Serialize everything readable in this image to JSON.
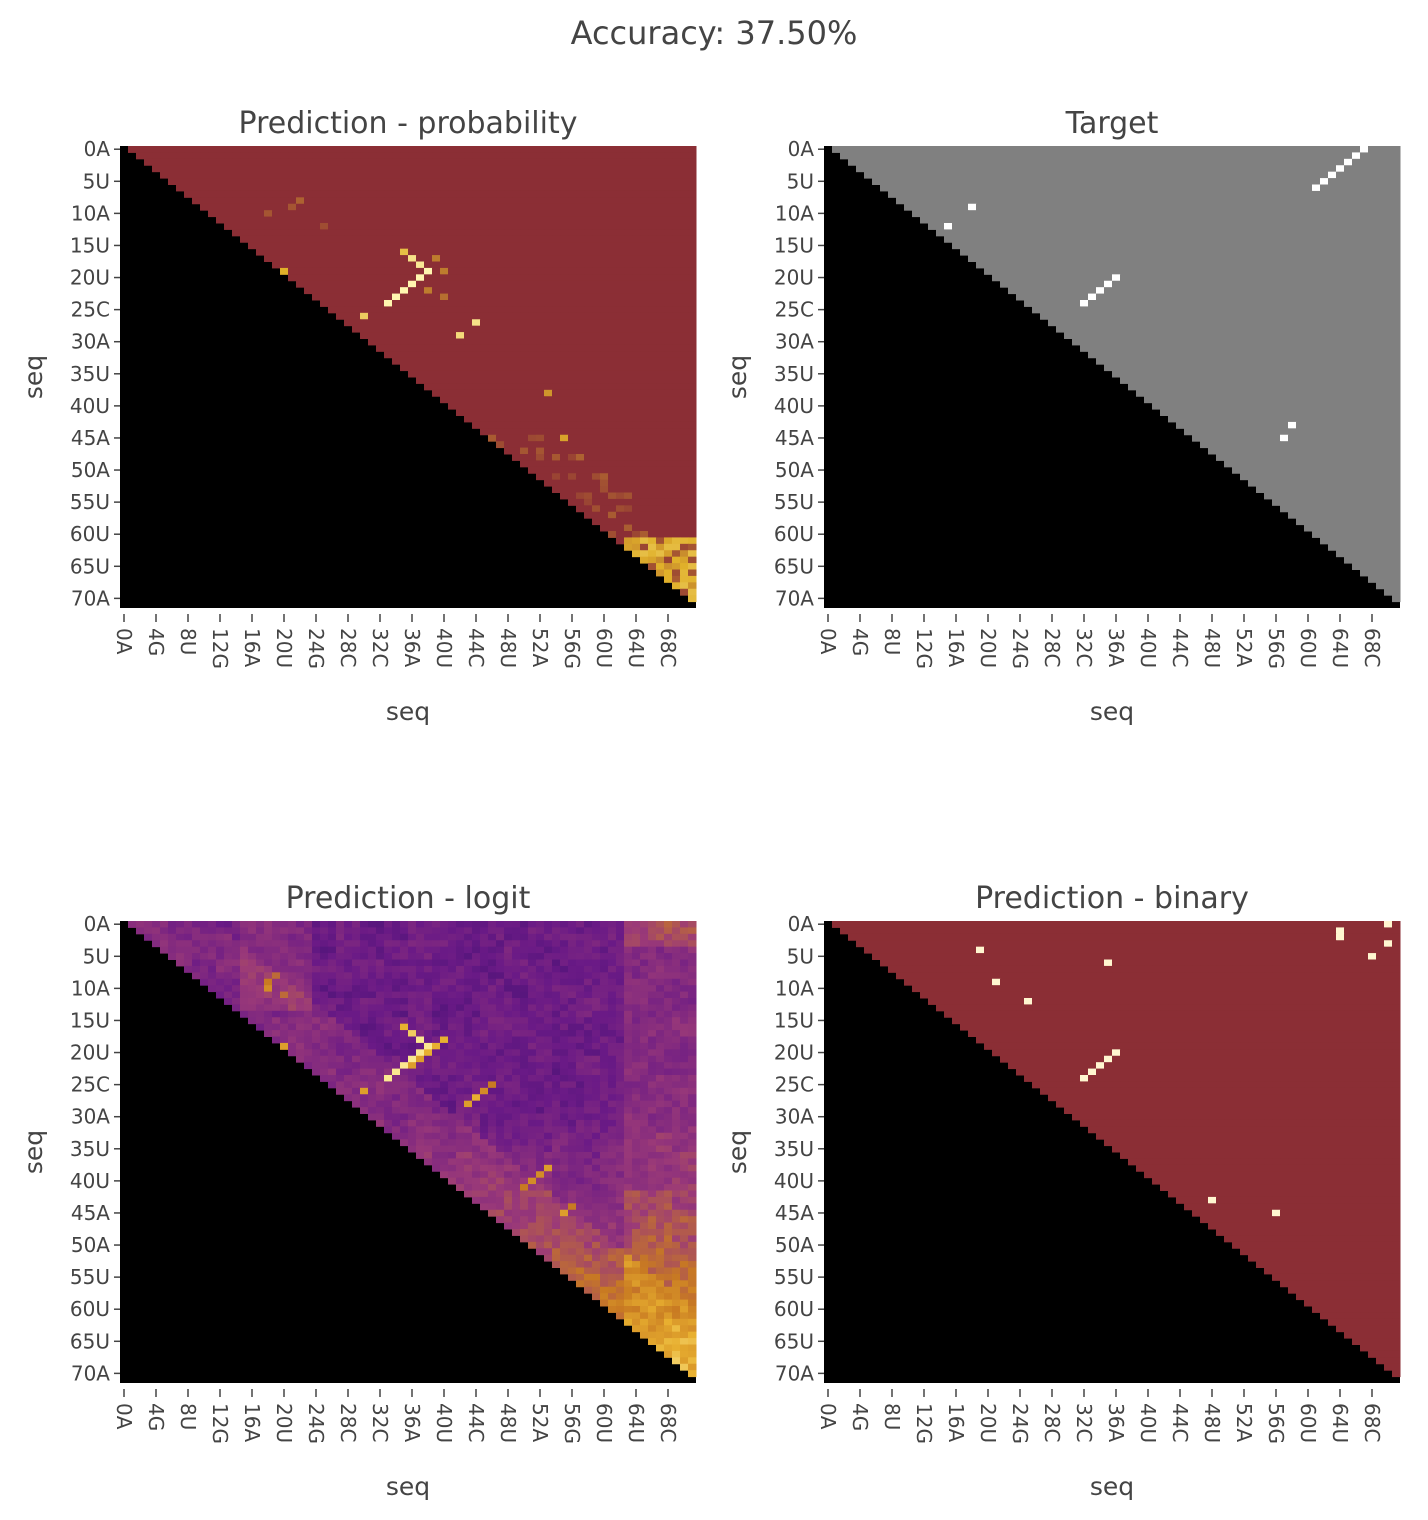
{
  "figure": {
    "title": "Accuracy: 37.50%"
  },
  "chart_data": [
    {
      "type": "heatmap",
      "panel": "probability",
      "title": "Prediction - probability",
      "xlabel": "seq",
      "ylabel": "seq",
      "size": 72,
      "x_tick_labels": [
        "0A",
        "4G",
        "8U",
        "12G",
        "16A",
        "20U",
        "24G",
        "28C",
        "32C",
        "36A",
        "40U",
        "44C",
        "48U",
        "52A",
        "56G",
        "60U",
        "64U",
        "68C"
      ],
      "y_tick_labels": [
        "0A",
        "5U",
        "10A",
        "15U",
        "20U",
        "25C",
        "30A",
        "35U",
        "40U",
        "45A",
        "50A",
        "55U",
        "60U",
        "65U",
        "70A"
      ],
      "masked_region": "lower-triangle (black)",
      "colors": {
        "background": "#8b2e35",
        "mask": "#000000",
        "high": "#fff6b0",
        "mid": "#e0b02a"
      },
      "highlights": [
        {
          "row": 16,
          "col": 35,
          "v": 0.6
        },
        {
          "row": 17,
          "col": 36,
          "v": 0.85
        },
        {
          "row": 18,
          "col": 37,
          "v": 0.9
        },
        {
          "row": 19,
          "col": 38,
          "v": 1.0
        },
        {
          "row": 20,
          "col": 37,
          "v": 1.0
        },
        {
          "row": 21,
          "col": 36,
          "v": 1.0
        },
        {
          "row": 22,
          "col": 35,
          "v": 1.0
        },
        {
          "row": 23,
          "col": 34,
          "v": 1.0
        },
        {
          "row": 24,
          "col": 33,
          "v": 1.0
        },
        {
          "row": 17,
          "col": 39,
          "v": 0.3
        },
        {
          "row": 19,
          "col": 40,
          "v": 0.3
        },
        {
          "row": 22,
          "col": 38,
          "v": 0.3
        },
        {
          "row": 23,
          "col": 40,
          "v": 0.25
        },
        {
          "row": 26,
          "col": 30,
          "v": 0.7
        },
        {
          "row": 19,
          "col": 20,
          "v": 0.5
        },
        {
          "row": 27,
          "col": 44,
          "v": 0.85
        },
        {
          "row": 29,
          "col": 42,
          "v": 0.8
        },
        {
          "row": 38,
          "col": 53,
          "v": 0.4
        },
        {
          "row": 45,
          "col": 55,
          "v": 0.45
        },
        {
          "row": 48,
          "col": 57,
          "v": 0.2
        },
        {
          "row": 10,
          "col": 18,
          "v": 0.15
        },
        {
          "row": 8,
          "col": 22,
          "v": 0.2
        },
        {
          "row": 9,
          "col": 21,
          "v": 0.15
        },
        {
          "row": 12,
          "col": 25,
          "v": 0.12
        },
        {
          "row": 63,
          "col": 65,
          "v": 0.6
        },
        {
          "row": 63,
          "col": 67,
          "v": 0.6
        },
        {
          "row": 64,
          "col": 69,
          "v": 0.5
        },
        {
          "row": 65,
          "col": 67,
          "v": 0.5
        },
        {
          "row": 66,
          "col": 70,
          "v": 0.55
        },
        {
          "row": 67,
          "col": 68,
          "v": 0.5
        },
        {
          "row": 68,
          "col": 70,
          "v": 0.6
        },
        {
          "row": 64,
          "col": 66,
          "v": 0.45
        },
        {
          "row": 66,
          "col": 68,
          "v": 0.5
        },
        {
          "row": 65,
          "col": 70,
          "v": 0.5
        }
      ]
    },
    {
      "type": "heatmap",
      "panel": "target",
      "title": "Target",
      "xlabel": "seq",
      "ylabel": "seq",
      "size": 72,
      "x_tick_labels": [
        "0A",
        "4G",
        "8U",
        "12G",
        "16A",
        "20U",
        "24G",
        "28C",
        "32C",
        "36A",
        "40U",
        "44C",
        "48U",
        "52A",
        "56G",
        "60U",
        "64U",
        "68C"
      ],
      "y_tick_labels": [
        "0A",
        "5U",
        "10A",
        "15U",
        "20U",
        "25C",
        "30A",
        "35U",
        "40U",
        "45A",
        "50A",
        "55U",
        "60U",
        "65U",
        "70A"
      ],
      "masked_region": "lower-triangle (black)",
      "colors": {
        "background": "#808080",
        "mask": "#000000",
        "high": "#ffffff"
      },
      "highlights": [
        {
          "row": 9,
          "col": 18,
          "v": 1
        },
        {
          "row": 12,
          "col": 15,
          "v": 1
        },
        {
          "row": 20,
          "col": 36,
          "v": 1
        },
        {
          "row": 21,
          "col": 35,
          "v": 1
        },
        {
          "row": 22,
          "col": 34,
          "v": 1
        },
        {
          "row": 23,
          "col": 33,
          "v": 1
        },
        {
          "row": 24,
          "col": 32,
          "v": 1
        },
        {
          "row": 0,
          "col": 67,
          "v": 1
        },
        {
          "row": 1,
          "col": 66,
          "v": 1
        },
        {
          "row": 2,
          "col": 65,
          "v": 1
        },
        {
          "row": 3,
          "col": 64,
          "v": 1
        },
        {
          "row": 4,
          "col": 63,
          "v": 1
        },
        {
          "row": 5,
          "col": 62,
          "v": 1
        },
        {
          "row": 6,
          "col": 61,
          "v": 1
        },
        {
          "row": 43,
          "col": 58,
          "v": 1
        },
        {
          "row": 45,
          "col": 57,
          "v": 1
        }
      ]
    },
    {
      "type": "heatmap",
      "panel": "logit",
      "title": "Prediction - logit",
      "xlabel": "seq",
      "ylabel": "seq",
      "size": 72,
      "x_tick_labels": [
        "0A",
        "4G",
        "8U",
        "12G",
        "16A",
        "20U",
        "24G",
        "28C",
        "32C",
        "36A",
        "40U",
        "44C",
        "48U",
        "52A",
        "56G",
        "60U",
        "64U",
        "68C"
      ],
      "y_tick_labels": [
        "0A",
        "5U",
        "10A",
        "15U",
        "20U",
        "25C",
        "30A",
        "35U",
        "40U",
        "45A",
        "50A",
        "55U",
        "60U",
        "65U",
        "70A"
      ],
      "masked_region": "lower-triangle (black)",
      "colors": {
        "low": "#2a0a6e",
        "mid": "#8a2a8a",
        "upper": "#c4771f",
        "high": "#f5e070",
        "mask": "#000000"
      },
      "highlights": [
        {
          "row": 16,
          "col": 35,
          "v": 0.9
        },
        {
          "row": 17,
          "col": 36,
          "v": 0.95
        },
        {
          "row": 18,
          "col": 37,
          "v": 1.0
        },
        {
          "row": 19,
          "col": 38,
          "v": 1.0
        },
        {
          "row": 20,
          "col": 37,
          "v": 1.0
        },
        {
          "row": 21,
          "col": 36,
          "v": 1.0
        },
        {
          "row": 22,
          "col": 35,
          "v": 1.0
        },
        {
          "row": 23,
          "col": 34,
          "v": 1.0
        },
        {
          "row": 24,
          "col": 33,
          "v": 1.0
        },
        {
          "row": 18,
          "col": 40,
          "v": 0.9
        },
        {
          "row": 19,
          "col": 39,
          "v": 0.9
        },
        {
          "row": 20,
          "col": 38,
          "v": 0.9
        },
        {
          "row": 21,
          "col": 37,
          "v": 0.85
        },
        {
          "row": 22,
          "col": 36,
          "v": 0.85
        },
        {
          "row": 26,
          "col": 30,
          "v": 0.85
        },
        {
          "row": 27,
          "col": 44,
          "v": 0.9
        },
        {
          "row": 28,
          "col": 43,
          "v": 0.85
        },
        {
          "row": 26,
          "col": 45,
          "v": 0.8
        },
        {
          "row": 25,
          "col": 46,
          "v": 0.75
        },
        {
          "row": 38,
          "col": 53,
          "v": 0.85
        },
        {
          "row": 39,
          "col": 52,
          "v": 0.8
        },
        {
          "row": 40,
          "col": 51,
          "v": 0.8
        },
        {
          "row": 41,
          "col": 50,
          "v": 0.75
        },
        {
          "row": 45,
          "col": 55,
          "v": 0.85
        },
        {
          "row": 44,
          "col": 56,
          "v": 0.75
        },
        {
          "row": 9,
          "col": 18,
          "v": 0.75
        },
        {
          "row": 10,
          "col": 18,
          "v": 0.8
        },
        {
          "row": 8,
          "col": 19,
          "v": 0.7
        },
        {
          "row": 11,
          "col": 20,
          "v": 0.7
        },
        {
          "row": 19,
          "col": 20,
          "v": 0.85
        }
      ]
    },
    {
      "type": "heatmap",
      "panel": "binary",
      "title": "Prediction - binary",
      "xlabel": "seq",
      "ylabel": "seq",
      "size": 72,
      "x_tick_labels": [
        "0A",
        "4G",
        "8U",
        "12G",
        "16A",
        "20U",
        "24G",
        "28C",
        "32C",
        "36A",
        "40U",
        "44C",
        "48U",
        "52A",
        "56G",
        "60U",
        "64U",
        "68C"
      ],
      "y_tick_labels": [
        "0A",
        "5U",
        "10A",
        "15U",
        "20U",
        "25C",
        "30A",
        "35U",
        "40U",
        "45A",
        "50A",
        "55U",
        "60U",
        "65U",
        "70A"
      ],
      "masked_region": "lower-triangle (black)",
      "colors": {
        "background": "#8b2e35",
        "mask": "#000000",
        "high": "#fff6d0"
      },
      "highlights": [
        {
          "row": 4,
          "col": 19,
          "v": 1
        },
        {
          "row": 9,
          "col": 21,
          "v": 1
        },
        {
          "row": 12,
          "col": 25,
          "v": 1
        },
        {
          "row": 6,
          "col": 35,
          "v": 1
        },
        {
          "row": 20,
          "col": 36,
          "v": 1
        },
        {
          "row": 21,
          "col": 35,
          "v": 1
        },
        {
          "row": 22,
          "col": 34,
          "v": 1
        },
        {
          "row": 23,
          "col": 33,
          "v": 1
        },
        {
          "row": 24,
          "col": 32,
          "v": 1
        },
        {
          "row": 1,
          "col": 64,
          "v": 1
        },
        {
          "row": 2,
          "col": 64,
          "v": 1
        },
        {
          "row": 0,
          "col": 70,
          "v": 1
        },
        {
          "row": 3,
          "col": 70,
          "v": 1
        },
        {
          "row": 5,
          "col": 68,
          "v": 1
        },
        {
          "row": 43,
          "col": 48,
          "v": 1
        },
        {
          "row": 45,
          "col": 56,
          "v": 1
        }
      ]
    }
  ]
}
